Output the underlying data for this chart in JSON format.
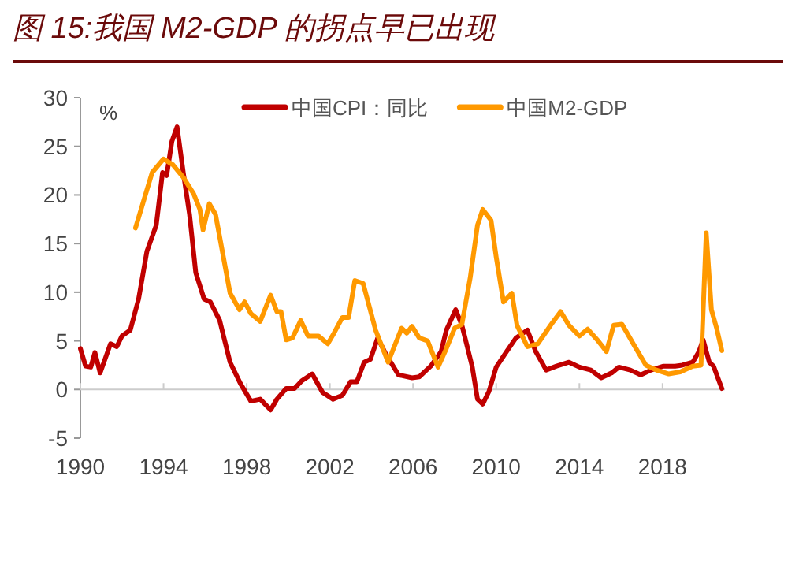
{
  "chart_data": {
    "type": "line",
    "title": "图 15:我国 M2-GDP 的拐点早已出现",
    "ylabel": "%",
    "legend": "top",
    "xlim": [
      1990,
      2021
    ],
    "ylim": [
      -5,
      30
    ],
    "xticks": [
      1990,
      1994,
      1998,
      2002,
      2006,
      2010,
      2014,
      2018
    ],
    "yticks": [
      -5,
      0,
      5,
      10,
      15,
      20,
      25,
      30
    ],
    "series": [
      {
        "name": "中国CPI：同比",
        "color": "#c00000",
        "x": [
          1990,
          1990.25,
          1990.5,
          1990.7,
          1990.95,
          1991.45,
          1991.75,
          1992,
          1992.4,
          1992.8,
          1993.2,
          1993.65,
          1993.95,
          1994.15,
          1994.4,
          1994.65,
          1994.95,
          1995.25,
          1995.55,
          1995.95,
          1996.25,
          1996.7,
          1997.2,
          1997.7,
          1998.2,
          1998.65,
          1999.15,
          1999.45,
          1999.9,
          2000.3,
          2000.65,
          2001.15,
          2001.65,
          2002.15,
          2002.6,
          2003,
          2003.3,
          2003.65,
          2003.95,
          2004.3,
          2004.7,
          2005.3,
          2005.95,
          2006.3,
          2006.85,
          2007.35,
          2007.6,
          2008.05,
          2008.35,
          2008.85,
          2009.1,
          2009.35,
          2009.65,
          2010,
          2010.5,
          2010.95,
          2011.5,
          2011.9,
          2012.4,
          2012.9,
          2013.5,
          2014,
          2014.55,
          2015.05,
          2015.55,
          2015.9,
          2016.45,
          2016.95,
          2017.45,
          2018.05,
          2018.6,
          2018.95,
          2019.45,
          2019.75,
          2019.95,
          2020.25,
          2020.45,
          2020.85
        ],
        "values": [
          4.2,
          2.4,
          2.3,
          3.8,
          1.7,
          4.7,
          4.4,
          5.5,
          6.1,
          9.3,
          14.2,
          16.9,
          22.3,
          22,
          25.5,
          27,
          22.3,
          18,
          12,
          9.3,
          9,
          7.1,
          2.8,
          0.6,
          -1.2,
          -1,
          -2.1,
          -1,
          0.1,
          0.1,
          0.9,
          1.6,
          -0.3,
          -1,
          -0.6,
          0.8,
          0.8,
          2.8,
          3.1,
          5.3,
          3.6,
          1.5,
          1.2,
          1.3,
          2.4,
          3.9,
          6.1,
          8.2,
          6.6,
          2.3,
          -1,
          -1.5,
          -0.2,
          2.3,
          3.9,
          5.3,
          6.1,
          3.9,
          2,
          2.4,
          2.8,
          2.3,
          2,
          1.2,
          1.7,
          2.3,
          2,
          1.5,
          2,
          2.4,
          2.4,
          2.5,
          2.8,
          3.9,
          5.1,
          2.8,
          2.4,
          0.1
        ]
      },
      {
        "name": "中国M2-GDP",
        "color": "#ff9900",
        "x": [
          1992.65,
          1993,
          1993.45,
          1994,
          1994.45,
          1994.95,
          1995.45,
          1995.75,
          1995.9,
          1996.2,
          1996.5,
          1997.2,
          1997.65,
          1997.9,
          1998.2,
          1998.65,
          1999.15,
          1999.45,
          1999.65,
          1999.9,
          2000.2,
          2000.6,
          2000.95,
          2001.45,
          2001.9,
          2002.2,
          2002.6,
          2002.9,
          2003.2,
          2003.6,
          2004.2,
          2004.8,
          2005.45,
          2005.7,
          2005.95,
          2006.3,
          2006.7,
          2007.2,
          2007.6,
          2008,
          2008.35,
          2008.75,
          2009.1,
          2009.35,
          2009.75,
          2010,
          2010.35,
          2010.75,
          2011,
          2011.5,
          2012,
          2012.65,
          2013.1,
          2013.5,
          2014,
          2014.4,
          2014.9,
          2015.3,
          2015.65,
          2016.05,
          2016.7,
          2017.2,
          2017.7,
          2018.3,
          2018.85,
          2019.45,
          2019.85,
          2020.1,
          2020.35,
          2020.6,
          2020.85
        ],
        "values": [
          16.6,
          19.1,
          22.3,
          23.7,
          23.1,
          21.8,
          20.1,
          18.5,
          16.4,
          19.1,
          18,
          9.9,
          8.2,
          9,
          7.8,
          7,
          9.7,
          8,
          8,
          5.1,
          5.3,
          7.1,
          5.5,
          5.5,
          4.7,
          5.8,
          7.4,
          7.4,
          11.2,
          10.9,
          6.1,
          2.8,
          6.3,
          5.8,
          6.5,
          5.3,
          5,
          2.3,
          4.2,
          6.3,
          6.7,
          11.5,
          16.9,
          18.5,
          17.4,
          13.6,
          9,
          9.9,
          6.6,
          4.4,
          4.7,
          6.7,
          8,
          6.6,
          5.5,
          6.2,
          5,
          3.9,
          6.6,
          6.7,
          4.3,
          2.5,
          2,
          1.6,
          1.8,
          2.4,
          2.5,
          16.1,
          8.2,
          6.3,
          4
        ]
      }
    ]
  }
}
